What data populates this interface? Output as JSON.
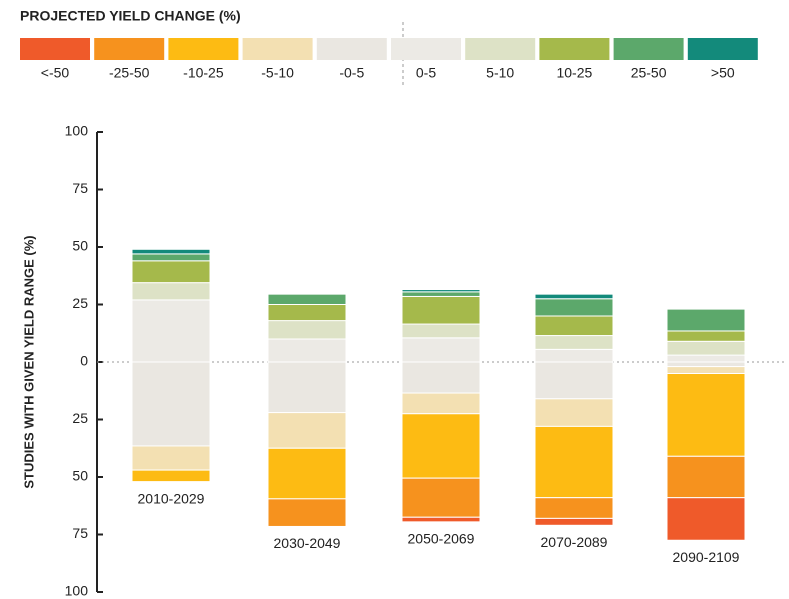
{
  "chart_data": {
    "type": "bar",
    "stacked": "diverging",
    "legend_title": "PROJECTED YIELD CHANGE (%)",
    "y_label": "STUDIES WITH GIVEN YIELD RANGE (%)",
    "categories": [
      "2010-2029",
      "2030-2049",
      "2050-2069",
      "2070-2089",
      "2090-2109"
    ],
    "series": [
      {
        "name": "<-50",
        "color": "#ef5a2a",
        "values": [
          0,
          0,
          -2,
          -3,
          -18.5
        ]
      },
      {
        "name": "-25-50",
        "color": "#f6921e",
        "values": [
          0,
          -12,
          -17,
          -9,
          -18
        ]
      },
      {
        "name": "-10-25",
        "color": "#fdbb13",
        "values": [
          -5,
          -22,
          -28,
          -31,
          -36
        ]
      },
      {
        "name": "-5-10",
        "color": "#f3e0b2",
        "values": [
          -10.5,
          -15.5,
          -9,
          -12,
          -3
        ]
      },
      {
        "name": "-0-5",
        "color": "#eae7e1",
        "values": [
          -36.5,
          -22,
          -13.5,
          -16,
          -2
        ]
      },
      {
        "name": "0-5",
        "color": "#eceae5",
        "values": [
          27,
          10,
          10.5,
          5.5,
          3
        ]
      },
      {
        "name": "5-10",
        "color": "#dde2c6",
        "values": [
          7.5,
          8,
          6,
          6,
          6
        ]
      },
      {
        "name": "10-25",
        "color": "#a5b94b",
        "values": [
          9.5,
          7,
          12,
          8.5,
          4.5
        ]
      },
      {
        "name": "25-50",
        "color": "#5ca86b",
        "values": [
          3,
          4.5,
          2,
          7.5,
          9.5
        ]
      },
      {
        "name": ">50",
        "color": "#138a7b",
        "values": [
          2,
          0,
          1,
          2,
          0
        ]
      }
    ],
    "ylim": [
      -100,
      100
    ],
    "yticks": [
      100,
      75,
      50,
      25,
      0,
      {
        "value": -25,
        "label": "25"
      },
      {
        "value": -50,
        "label": "50"
      },
      {
        "value": -75,
        "label": "75"
      },
      {
        "value": -100,
        "label": "100"
      }
    ]
  }
}
